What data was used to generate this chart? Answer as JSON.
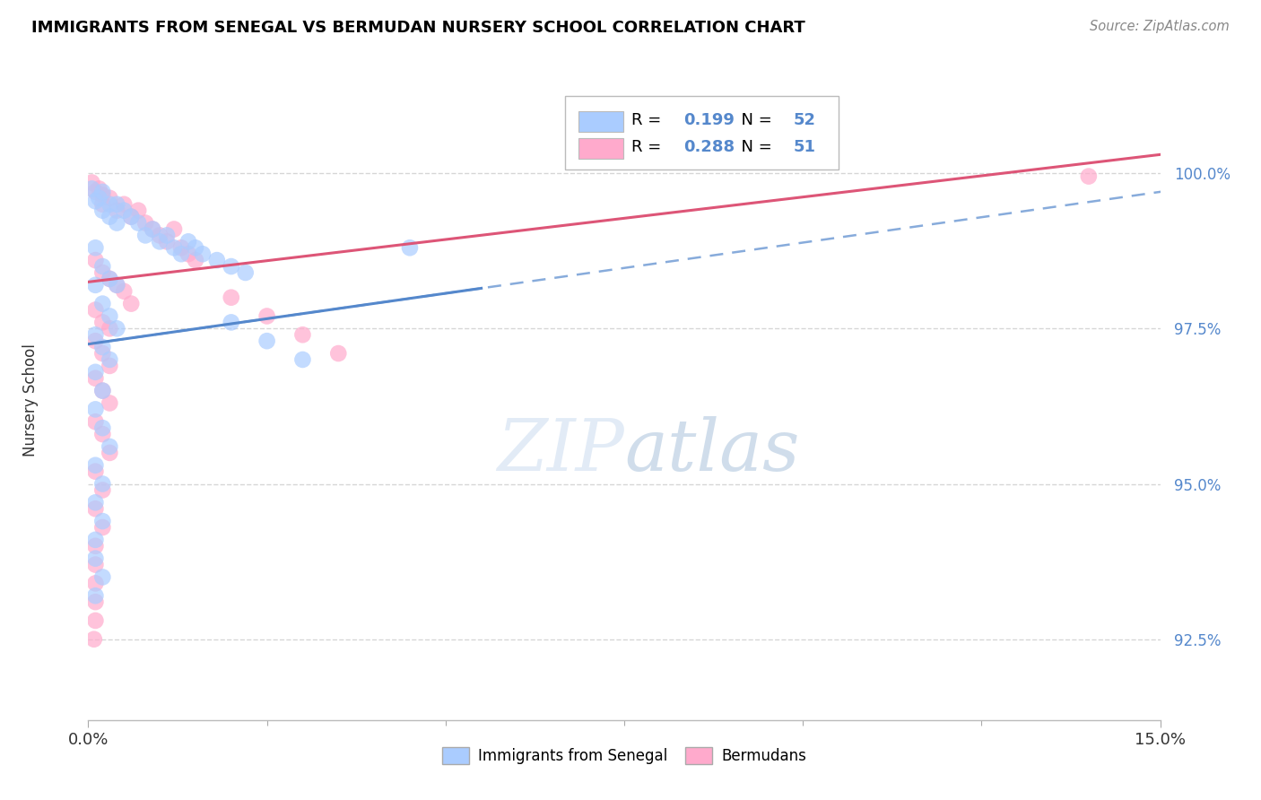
{
  "title": "IMMIGRANTS FROM SENEGAL VS BERMUDAN NURSERY SCHOOL CORRELATION CHART",
  "source": "Source: ZipAtlas.com",
  "ylabel": "Nursery School",
  "legend1_label": "Immigrants from Senegal",
  "legend2_label": "Bermudans",
  "R1": 0.199,
  "N1": 52,
  "R2": 0.288,
  "N2": 51,
  "blue_color": "#aaccff",
  "pink_color": "#ffaacc",
  "blue_line_color": "#5588cc",
  "pink_line_color": "#dd5577",
  "grid_color": "#cccccc",
  "xlim": [
    0.0,
    0.15
  ],
  "ylim": [
    91.2,
    101.5
  ],
  "yticks": [
    100.0,
    97.5,
    95.0,
    92.5
  ],
  "blue_scatter": [
    [
      0.0005,
      99.75
    ],
    [
      0.001,
      99.55
    ],
    [
      0.0015,
      99.6
    ],
    [
      0.002,
      99.7
    ],
    [
      0.002,
      99.4
    ],
    [
      0.003,
      99.5
    ],
    [
      0.003,
      99.3
    ],
    [
      0.004,
      99.5
    ],
    [
      0.004,
      99.2
    ],
    [
      0.005,
      99.4
    ],
    [
      0.006,
      99.3
    ],
    [
      0.007,
      99.2
    ],
    [
      0.008,
      99.0
    ],
    [
      0.009,
      99.1
    ],
    [
      0.01,
      98.9
    ],
    [
      0.011,
      99.0
    ],
    [
      0.012,
      98.8
    ],
    [
      0.013,
      98.7
    ],
    [
      0.014,
      98.9
    ],
    [
      0.015,
      98.8
    ],
    [
      0.016,
      98.7
    ],
    [
      0.018,
      98.6
    ],
    [
      0.02,
      98.5
    ],
    [
      0.022,
      98.4
    ],
    [
      0.001,
      98.8
    ],
    [
      0.002,
      98.5
    ],
    [
      0.003,
      98.3
    ],
    [
      0.004,
      98.2
    ],
    [
      0.001,
      98.2
    ],
    [
      0.002,
      97.9
    ],
    [
      0.003,
      97.7
    ],
    [
      0.004,
      97.5
    ],
    [
      0.001,
      97.4
    ],
    [
      0.002,
      97.2
    ],
    [
      0.003,
      97.0
    ],
    [
      0.001,
      96.8
    ],
    [
      0.002,
      96.5
    ],
    [
      0.001,
      96.2
    ],
    [
      0.002,
      95.9
    ],
    [
      0.003,
      95.6
    ],
    [
      0.001,
      95.3
    ],
    [
      0.002,
      95.0
    ],
    [
      0.001,
      94.7
    ],
    [
      0.002,
      94.4
    ],
    [
      0.001,
      94.1
    ],
    [
      0.001,
      93.8
    ],
    [
      0.002,
      93.5
    ],
    [
      0.001,
      93.2
    ],
    [
      0.045,
      98.8
    ],
    [
      0.02,
      97.6
    ],
    [
      0.025,
      97.3
    ],
    [
      0.03,
      97.0
    ]
  ],
  "pink_scatter": [
    [
      0.0005,
      99.85
    ],
    [
      0.001,
      99.7
    ],
    [
      0.0015,
      99.75
    ],
    [
      0.002,
      99.65
    ],
    [
      0.002,
      99.5
    ],
    [
      0.003,
      99.6
    ],
    [
      0.004,
      99.4
    ],
    [
      0.005,
      99.5
    ],
    [
      0.006,
      99.3
    ],
    [
      0.007,
      99.4
    ],
    [
      0.008,
      99.2
    ],
    [
      0.009,
      99.1
    ],
    [
      0.01,
      99.0
    ],
    [
      0.011,
      98.9
    ],
    [
      0.012,
      99.1
    ],
    [
      0.013,
      98.8
    ],
    [
      0.014,
      98.7
    ],
    [
      0.015,
      98.6
    ],
    [
      0.001,
      98.6
    ],
    [
      0.002,
      98.4
    ],
    [
      0.003,
      98.3
    ],
    [
      0.004,
      98.2
    ],
    [
      0.005,
      98.1
    ],
    [
      0.006,
      97.9
    ],
    [
      0.001,
      97.8
    ],
    [
      0.002,
      97.6
    ],
    [
      0.003,
      97.5
    ],
    [
      0.001,
      97.3
    ],
    [
      0.002,
      97.1
    ],
    [
      0.003,
      96.9
    ],
    [
      0.001,
      96.7
    ],
    [
      0.002,
      96.5
    ],
    [
      0.003,
      96.3
    ],
    [
      0.001,
      96.0
    ],
    [
      0.002,
      95.8
    ],
    [
      0.003,
      95.5
    ],
    [
      0.001,
      95.2
    ],
    [
      0.002,
      94.9
    ],
    [
      0.001,
      94.6
    ],
    [
      0.002,
      94.3
    ],
    [
      0.001,
      94.0
    ],
    [
      0.001,
      93.7
    ],
    [
      0.001,
      93.4
    ],
    [
      0.001,
      93.1
    ],
    [
      0.001,
      92.8
    ],
    [
      0.0008,
      92.5
    ],
    [
      0.02,
      98.0
    ],
    [
      0.025,
      97.7
    ],
    [
      0.03,
      97.4
    ],
    [
      0.035,
      97.1
    ],
    [
      0.14,
      99.95
    ]
  ],
  "blue_line_x0": 0.0,
  "blue_line_y0": 97.25,
  "blue_line_x1": 0.15,
  "blue_line_y1": 99.7,
  "pink_line_x0": 0.0,
  "pink_line_y0": 98.25,
  "pink_line_x1": 0.15,
  "pink_line_y1": 100.3
}
